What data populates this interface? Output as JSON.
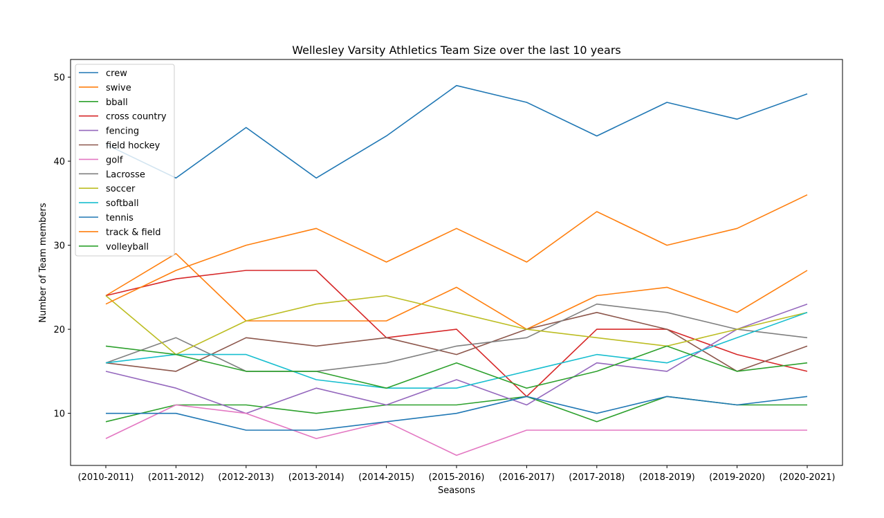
{
  "chart_data": {
    "type": "line",
    "title": "Wellesley Varsity Athletics Team Size over the last 10 years",
    "xlabel": "Seasons",
    "ylabel": "Number of Team members",
    "categories": [
      "(2010-2011)",
      "(2011-2012)",
      "(2012-2013)",
      "(2013-2014)",
      "(2014-2015)",
      "(2015-2016)",
      "(2016-2017)",
      "(2017-2018)",
      "(2018-2019)",
      "(2019-2020)",
      "(2020-2021)"
    ],
    "yticks": [
      10,
      20,
      30,
      40,
      50
    ],
    "ylim": [
      3.8,
      52.1
    ],
    "grid": false,
    "legend_position": "upper-left",
    "series": [
      {
        "name": "crew",
        "color": "#1f77b4",
        "values": [
          42,
          38,
          44,
          38,
          43,
          49,
          47,
          43,
          47,
          45,
          48
        ]
      },
      {
        "name": "swive",
        "color": "#ff7f0e",
        "values": [
          24,
          29,
          21,
          21,
          21,
          25,
          20,
          24,
          25,
          22,
          27
        ]
      },
      {
        "name": "bball",
        "color": "#2ca02c",
        "values": [
          9,
          11,
          11,
          10,
          11,
          11,
          12,
          9,
          12,
          11,
          11
        ]
      },
      {
        "name": "cross country",
        "color": "#d62728",
        "values": [
          24,
          26,
          27,
          27,
          19,
          20,
          12,
          20,
          20,
          17,
          15
        ]
      },
      {
        "name": "fencing",
        "color": "#9467bd",
        "values": [
          15,
          13,
          10,
          13,
          11,
          14,
          11,
          16,
          15,
          20,
          23
        ]
      },
      {
        "name": "field hockey",
        "color": "#8c564b",
        "values": [
          16,
          15,
          19,
          18,
          19,
          17,
          20,
          22,
          20,
          15,
          18
        ]
      },
      {
        "name": "golf",
        "color": "#e377c2",
        "values": [
          7,
          11,
          10,
          7,
          9,
          5,
          8,
          8,
          8,
          8,
          8
        ]
      },
      {
        "name": "Lacrosse",
        "color": "#7f7f7f",
        "values": [
          16,
          19,
          15,
          15,
          16,
          18,
          19,
          23,
          22,
          20,
          19
        ]
      },
      {
        "name": "soccer",
        "color": "#bcbd22",
        "values": [
          24,
          17,
          21,
          23,
          24,
          22,
          20,
          19,
          18,
          20,
          22
        ]
      },
      {
        "name": "softball",
        "color": "#17becf",
        "values": [
          16,
          17,
          17,
          14,
          13,
          13,
          15,
          17,
          16,
          19,
          22
        ]
      },
      {
        "name": "tennis",
        "color": "#1f77b4",
        "values": [
          10,
          10,
          8,
          8,
          9,
          10,
          12,
          10,
          12,
          11,
          12
        ]
      },
      {
        "name": "track & field",
        "color": "#ff7f0e",
        "values": [
          23,
          27,
          30,
          32,
          28,
          32,
          28,
          34,
          30,
          32,
          36
        ]
      },
      {
        "name": "volleyball",
        "color": "#2ca02c",
        "values": [
          18,
          17,
          15,
          15,
          13,
          16,
          13,
          15,
          18,
          15,
          16
        ]
      }
    ]
  }
}
